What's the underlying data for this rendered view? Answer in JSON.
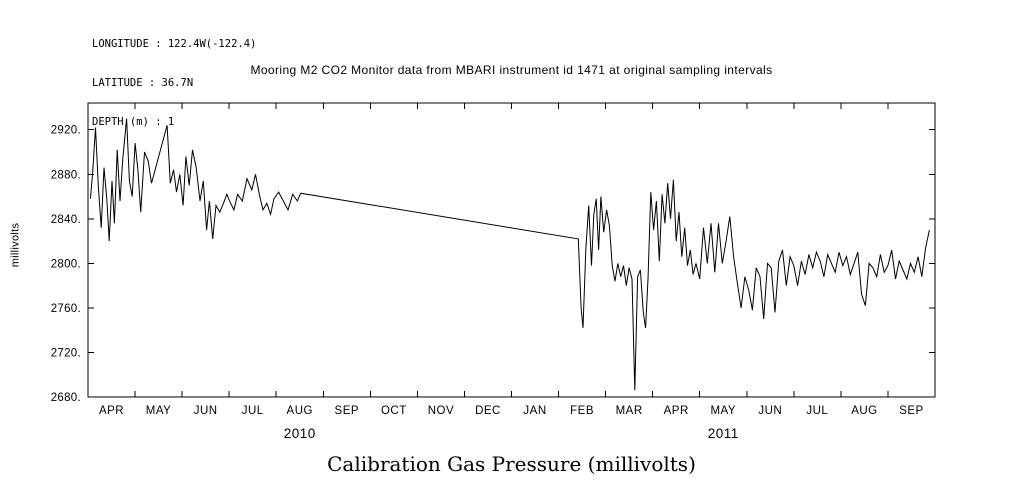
{
  "header": {
    "longitude": "LONGITUDE : 122.4W(-122.4)",
    "latitude": "LATITUDE : 36.7N",
    "depth": "DEPTH (m) : 1"
  },
  "title": "Mooring M2 CO2 Monitor data from MBARI instrument id 1471 at original sampling intervals",
  "footer_title": "Calibration Gas Pressure (millivolts)",
  "chart_data": {
    "type": "line",
    "title": "Mooring M2 CO2 Monitor data from MBARI instrument id 1471 at original sampling intervals",
    "xlabel": "",
    "ylabel": "millivolts",
    "x_description": "x values are months since 2010-04-01 (0 = Apr 2010, 18 = Oct 2011); a straight segment from Aug 2010 to Feb 2011 spans a data gap",
    "xlim": [
      0,
      18
    ],
    "ylim": [
      2680,
      2944
    ],
    "grid": false,
    "legend": "none",
    "line_color": "#000000",
    "y_ticks": [
      2680,
      2720,
      2760,
      2800,
      2840,
      2880,
      2920
    ],
    "y_tick_labels": [
      "2680.",
      "2720.",
      "2760.",
      "2800.",
      "2840.",
      "2880.",
      "2920."
    ],
    "x_tick_labels": [
      "APR",
      "MAY",
      "JUN",
      "JUL",
      "AUG",
      "SEP",
      "OCT",
      "NOV",
      "DEC",
      "JAN",
      "FEB",
      "MAR",
      "APR",
      "MAY",
      "JUN",
      "JUL",
      "AUG",
      "SEP"
    ],
    "year_labels": [
      {
        "label": "2010",
        "center_month": 4.5
      },
      {
        "label": "2011",
        "center_month": 13.5
      }
    ],
    "points": [
      [
        0.05,
        2858
      ],
      [
        0.1,
        2882
      ],
      [
        0.16,
        2922
      ],
      [
        0.22,
        2868
      ],
      [
        0.28,
        2832
      ],
      [
        0.34,
        2886
      ],
      [
        0.4,
        2858
      ],
      [
        0.45,
        2820
      ],
      [
        0.51,
        2874
      ],
      [
        0.56,
        2836
      ],
      [
        0.62,
        2902
      ],
      [
        0.68,
        2856
      ],
      [
        0.74,
        2894
      ],
      [
        0.82,
        2930
      ],
      [
        0.88,
        2874
      ],
      [
        0.94,
        2860
      ],
      [
        1.0,
        2908
      ],
      [
        1.06,
        2884
      ],
      [
        1.12,
        2846
      ],
      [
        1.2,
        2900
      ],
      [
        1.28,
        2892
      ],
      [
        1.35,
        2872
      ],
      [
        1.68,
        2924
      ],
      [
        1.75,
        2872
      ],
      [
        1.82,
        2884
      ],
      [
        1.88,
        2864
      ],
      [
        1.95,
        2880
      ],
      [
        2.02,
        2852
      ],
      [
        2.08,
        2896
      ],
      [
        2.15,
        2870
      ],
      [
        2.22,
        2902
      ],
      [
        2.3,
        2886
      ],
      [
        2.38,
        2856
      ],
      [
        2.45,
        2874
      ],
      [
        2.52,
        2830
      ],
      [
        2.58,
        2856
      ],
      [
        2.65,
        2822
      ],
      [
        2.72,
        2852
      ],
      [
        2.8,
        2846
      ],
      [
        2.88,
        2854
      ],
      [
        2.95,
        2862
      ],
      [
        3.02,
        2855
      ],
      [
        3.1,
        2848
      ],
      [
        3.18,
        2862
      ],
      [
        3.28,
        2856
      ],
      [
        3.38,
        2876
      ],
      [
        3.48,
        2866
      ],
      [
        3.56,
        2880
      ],
      [
        3.64,
        2862
      ],
      [
        3.72,
        2848
      ],
      [
        3.8,
        2854
      ],
      [
        3.88,
        2844
      ],
      [
        3.95,
        2858
      ],
      [
        4.05,
        2864
      ],
      [
        4.15,
        2856
      ],
      [
        4.25,
        2848
      ],
      [
        4.35,
        2862
      ],
      [
        4.45,
        2856
      ],
      [
        4.52,
        2863
      ],
      [
        10.42,
        2822
      ],
      [
        10.48,
        2760
      ],
      [
        10.52,
        2742
      ],
      [
        10.58,
        2812
      ],
      [
        10.64,
        2852
      ],
      [
        10.7,
        2798
      ],
      [
        10.75,
        2844
      ],
      [
        10.8,
        2858
      ],
      [
        10.85,
        2812
      ],
      [
        10.9,
        2860
      ],
      [
        10.96,
        2828
      ],
      [
        11.02,
        2848
      ],
      [
        11.08,
        2834
      ],
      [
        11.14,
        2798
      ],
      [
        11.2,
        2784
      ],
      [
        11.26,
        2800
      ],
      [
        11.32,
        2788
      ],
      [
        11.38,
        2798
      ],
      [
        11.44,
        2780
      ],
      [
        11.5,
        2796
      ],
      [
        11.56,
        2786
      ],
      [
        11.62,
        2686
      ],
      [
        11.68,
        2788
      ],
      [
        11.74,
        2794
      ],
      [
        11.8,
        2756
      ],
      [
        11.85,
        2742
      ],
      [
        11.9,
        2786
      ],
      [
        11.96,
        2864
      ],
      [
        12.02,
        2830
      ],
      [
        12.08,
        2856
      ],
      [
        12.14,
        2802
      ],
      [
        12.2,
        2862
      ],
      [
        12.26,
        2836
      ],
      [
        12.32,
        2872
      ],
      [
        12.38,
        2840
      ],
      [
        12.44,
        2875
      ],
      [
        12.5,
        2820
      ],
      [
        12.56,
        2846
      ],
      [
        12.62,
        2806
      ],
      [
        12.68,
        2832
      ],
      [
        12.74,
        2798
      ],
      [
        12.8,
        2812
      ],
      [
        12.86,
        2790
      ],
      [
        12.92,
        2800
      ],
      [
        13.0,
        2786
      ],
      [
        13.08,
        2832
      ],
      [
        13.16,
        2800
      ],
      [
        13.24,
        2836
      ],
      [
        13.32,
        2792
      ],
      [
        13.4,
        2836
      ],
      [
        13.48,
        2800
      ],
      [
        13.56,
        2820
      ],
      [
        13.64,
        2842
      ],
      [
        13.72,
        2806
      ],
      [
        13.8,
        2782
      ],
      [
        13.88,
        2760
      ],
      [
        13.96,
        2788
      ],
      [
        14.04,
        2776
      ],
      [
        14.12,
        2758
      ],
      [
        14.2,
        2796
      ],
      [
        14.28,
        2788
      ],
      [
        14.36,
        2750
      ],
      [
        14.44,
        2800
      ],
      [
        14.52,
        2796
      ],
      [
        14.6,
        2756
      ],
      [
        14.68,
        2802
      ],
      [
        14.76,
        2812
      ],
      [
        14.84,
        2780
      ],
      [
        14.92,
        2806
      ],
      [
        15.0,
        2798
      ],
      [
        15.08,
        2780
      ],
      [
        15.16,
        2802
      ],
      [
        15.24,
        2790
      ],
      [
        15.32,
        2808
      ],
      [
        15.4,
        2796
      ],
      [
        15.48,
        2810
      ],
      [
        15.56,
        2802
      ],
      [
        15.64,
        2788
      ],
      [
        15.72,
        2808
      ],
      [
        15.8,
        2800
      ],
      [
        15.88,
        2792
      ],
      [
        15.96,
        2810
      ],
      [
        16.04,
        2798
      ],
      [
        16.12,
        2806
      ],
      [
        16.2,
        2790
      ],
      [
        16.28,
        2800
      ],
      [
        16.36,
        2810
      ],
      [
        16.44,
        2772
      ],
      [
        16.52,
        2762
      ],
      [
        16.6,
        2800
      ],
      [
        16.68,
        2796
      ],
      [
        16.76,
        2788
      ],
      [
        16.84,
        2808
      ],
      [
        16.92,
        2792
      ],
      [
        17.0,
        2798
      ],
      [
        17.08,
        2812
      ],
      [
        17.16,
        2786
      ],
      [
        17.24,
        2802
      ],
      [
        17.32,
        2794
      ],
      [
        17.4,
        2786
      ],
      [
        17.48,
        2800
      ],
      [
        17.56,
        2792
      ],
      [
        17.64,
        2806
      ],
      [
        17.72,
        2788
      ],
      [
        17.8,
        2814
      ],
      [
        17.88,
        2830
      ]
    ]
  }
}
